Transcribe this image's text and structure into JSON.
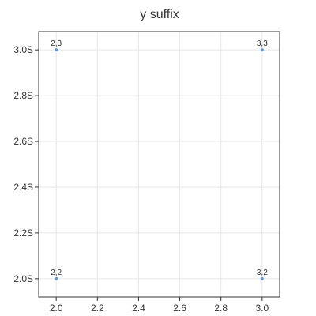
{
  "chart_data": {
    "type": "scatter",
    "title": "y suffix",
    "xlabel": "",
    "ylabel": "",
    "xlim": [
      1.915,
      3.085
    ],
    "ylim": [
      1.92,
      3.08
    ],
    "x_ticks": [
      2.0,
      2.2,
      2.4,
      2.6,
      2.8,
      3.0
    ],
    "x_tick_labels": [
      "2.0",
      "2.2",
      "2.4",
      "2.6",
      "2.8",
      "3.0"
    ],
    "y_ticks": [
      2.0,
      2.2,
      2.4,
      2.6,
      2.8,
      3.0
    ],
    "y_tick_labels": [
      "2.0S",
      "2.2S",
      "2.4S",
      "2.6S",
      "2.8S",
      "3.0S"
    ],
    "y_suffix": "S",
    "grid": true,
    "legend": "none",
    "series": [
      {
        "color": "#5b9bd5",
        "points": [
          {
            "x": 2,
            "y": 3,
            "label": "2,3"
          },
          {
            "x": 3,
            "y": 3,
            "label": "3,3"
          },
          {
            "x": 2,
            "y": 2,
            "label": "2,2"
          },
          {
            "x": 3,
            "y": 2,
            "label": "3,2"
          }
        ]
      }
    ]
  }
}
